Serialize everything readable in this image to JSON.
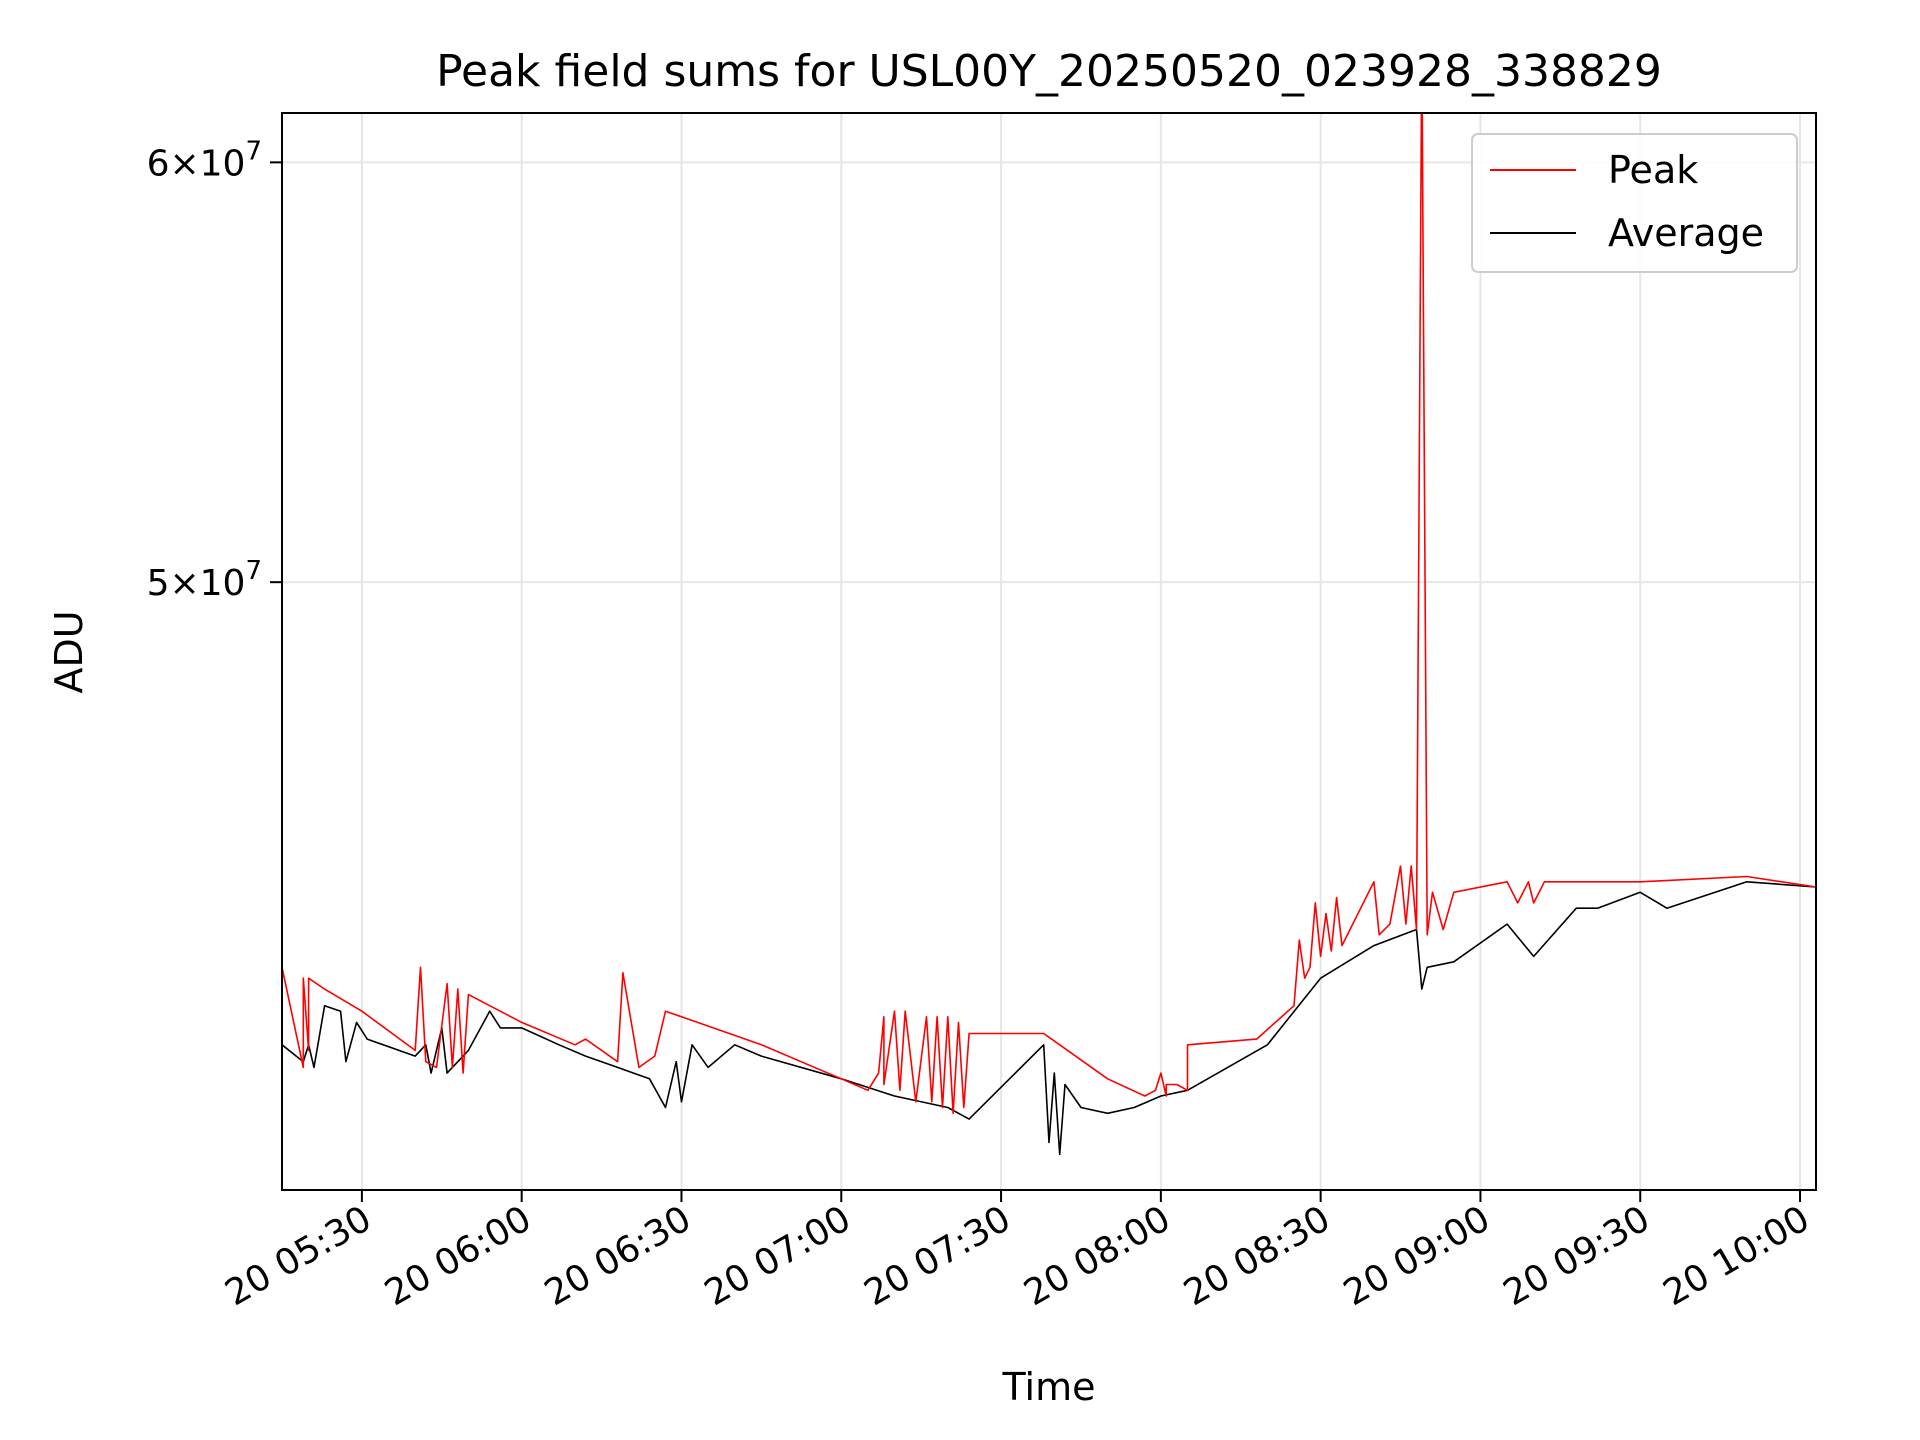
{
  "chart_data": {
    "type": "line",
    "title": "Peak field sums for USL00Y_20250520_023928_338829",
    "xlabel": "Time",
    "ylabel": "ADU",
    "xlim": [
      "2025-05-20 05:15",
      "2025-05-20 10:03"
    ],
    "ylim": [
      38400000,
      61300000
    ],
    "yscale": "log",
    "yticks": [
      {
        "value": 50000000,
        "mantissa": "5",
        "base": "10",
        "exp": "7"
      },
      {
        "value": 60000000,
        "mantissa": "6",
        "base": "10",
        "exp": "7"
      }
    ],
    "xtick_labels": [
      {
        "t": "2025-05-20 05:30",
        "label": "20 05:30"
      },
      {
        "t": "2025-05-20 06:00",
        "label": "20 06:00"
      },
      {
        "t": "2025-05-20 06:30",
        "label": "20 06:30"
      },
      {
        "t": "2025-05-20 07:00",
        "label": "20 07:00"
      },
      {
        "t": "2025-05-20 07:30",
        "label": "20 07:30"
      },
      {
        "t": "2025-05-20 08:00",
        "label": "20 08:00"
      },
      {
        "t": "2025-05-20 08:30",
        "label": "20 08:30"
      },
      {
        "t": "2025-05-20 09:00",
        "label": "20 09:00"
      },
      {
        "t": "2025-05-20 09:30",
        "label": "20 09:30"
      },
      {
        "t": "2025-05-20 10:00",
        "label": "20 10:00"
      }
    ],
    "grid": true,
    "legend_position": "top-right",
    "series": [
      {
        "name": "Peak",
        "color": "#ff0000",
        "points": [
          [
            "2025-05-20 05:15",
            42300000
          ],
          [
            "2025-05-20 05:19",
            40500000
          ],
          [
            "2025-05-20 05:19",
            42100000
          ],
          [
            "2025-05-20 05:20",
            40800000
          ],
          [
            "2025-05-20 05:20",
            42100000
          ],
          [
            "2025-05-20 05:23",
            41900000
          ],
          [
            "2025-05-20 05:30",
            41500000
          ],
          [
            "2025-05-20 05:40",
            40800000
          ],
          [
            "2025-05-20 05:41",
            42300000
          ],
          [
            "2025-05-20 05:42",
            40600000
          ],
          [
            "2025-05-20 05:44",
            40500000
          ],
          [
            "2025-05-20 05:46",
            42000000
          ],
          [
            "2025-05-20 05:47",
            40500000
          ],
          [
            "2025-05-20 05:48",
            41900000
          ],
          [
            "2025-05-20 05:49",
            40400000
          ],
          [
            "2025-05-20 05:50",
            41800000
          ],
          [
            "2025-05-20 06:00",
            41300000
          ],
          [
            "2025-05-20 06:10",
            40900000
          ],
          [
            "2025-05-20 06:12",
            41000000
          ],
          [
            "2025-05-20 06:18",
            40600000
          ],
          [
            "2025-05-20 06:19",
            42200000
          ],
          [
            "2025-05-20 06:22",
            40500000
          ],
          [
            "2025-05-20 06:25",
            40700000
          ],
          [
            "2025-05-20 06:27",
            41500000
          ],
          [
            "2025-05-20 06:30",
            41400000
          ],
          [
            "2025-05-20 06:45",
            40900000
          ],
          [
            "2025-05-20 07:00",
            40300000
          ],
          [
            "2025-05-20 07:05",
            40100000
          ],
          [
            "2025-05-20 07:07",
            40400000
          ],
          [
            "2025-05-20 07:08",
            41400000
          ],
          [
            "2025-05-20 07:08",
            40200000
          ],
          [
            "2025-05-20 07:10",
            41500000
          ],
          [
            "2025-05-20 07:11",
            40100000
          ],
          [
            "2025-05-20 07:12",
            41500000
          ],
          [
            "2025-05-20 07:14",
            39900000
          ],
          [
            "2025-05-20 07:16",
            41400000
          ],
          [
            "2025-05-20 07:17",
            39900000
          ],
          [
            "2025-05-20 07:18",
            41400000
          ],
          [
            "2025-05-20 07:19",
            39800000
          ],
          [
            "2025-05-20 07:19",
            39800000
          ],
          [
            "2025-05-20 07:20",
            41400000
          ],
          [
            "2025-05-20 07:21",
            39700000
          ],
          [
            "2025-05-20 07:22",
            41300000
          ],
          [
            "2025-05-20 07:23",
            39800000
          ],
          [
            "2025-05-20 07:24",
            41100000
          ],
          [
            "2025-05-20 07:38",
            41100000
          ],
          [
            "2025-05-20 07:41",
            40900000
          ],
          [
            "2025-05-20 07:50",
            40300000
          ],
          [
            "2025-05-20 07:57",
            40000000
          ],
          [
            "2025-05-20 07:59",
            40100000
          ],
          [
            "2025-05-20 08:00",
            40400000
          ],
          [
            "2025-05-20 08:01",
            40000000
          ],
          [
            "2025-05-20 08:01",
            40200000
          ],
          [
            "2025-05-20 08:03",
            40200000
          ],
          [
            "2025-05-20 08:05",
            40100000
          ],
          [
            "2025-05-20 08:05",
            40900000
          ],
          [
            "2025-05-20 08:18",
            41000000
          ],
          [
            "2025-05-20 08:25",
            41600000
          ],
          [
            "2025-05-20 08:26",
            42800000
          ],
          [
            "2025-05-20 08:27",
            42100000
          ],
          [
            "2025-05-20 08:28",
            42300000
          ],
          [
            "2025-05-20 08:29",
            43500000
          ],
          [
            "2025-05-20 08:30",
            42500000
          ],
          [
            "2025-05-20 08:31",
            43300000
          ],
          [
            "2025-05-20 08:32",
            42600000
          ],
          [
            "2025-05-20 08:33",
            43600000
          ],
          [
            "2025-05-20 08:34",
            42700000
          ],
          [
            "2025-05-20 08:40",
            43900000
          ],
          [
            "2025-05-20 08:41",
            42900000
          ],
          [
            "2025-05-20 08:43",
            43100000
          ],
          [
            "2025-05-20 08:45",
            44200000
          ],
          [
            "2025-05-20 08:46",
            43100000
          ],
          [
            "2025-05-20 08:47",
            44200000
          ],
          [
            "2025-05-20 08:48",
            43000000
          ],
          [
            "2025-05-20 08:49",
            63200000
          ],
          [
            "2025-05-20 08:50",
            42900000
          ],
          [
            "2025-05-20 08:51",
            43700000
          ],
          [
            "2025-05-20 08:53",
            43000000
          ],
          [
            "2025-05-20 08:55",
            43700000
          ],
          [
            "2025-05-20 09:05",
            43900000
          ],
          [
            "2025-05-20 09:07",
            43500000
          ],
          [
            "2025-05-20 09:09",
            43900000
          ],
          [
            "2025-05-20 09:10",
            43500000
          ],
          [
            "2025-05-20 09:12",
            43900000
          ],
          [
            "2025-05-20 09:30",
            43900000
          ],
          [
            "2025-05-20 09:50",
            44000000
          ],
          [
            "2025-05-20 10:03",
            43800000
          ]
        ]
      },
      {
        "name": "Average",
        "color": "#000000",
        "points": [
          [
            "2025-05-20 05:15",
            40900000
          ],
          [
            "2025-05-20 05:19",
            40600000
          ],
          [
            "2025-05-20 05:20",
            40900000
          ],
          [
            "2025-05-20 05:21",
            40500000
          ],
          [
            "2025-05-20 05:23",
            41600000
          ],
          [
            "2025-05-20 05:26",
            41500000
          ],
          [
            "2025-05-20 05:27",
            40600000
          ],
          [
            "2025-05-20 05:29",
            41300000
          ],
          [
            "2025-05-20 05:31",
            41000000
          ],
          [
            "2025-05-20 05:40",
            40700000
          ],
          [
            "2025-05-20 05:42",
            40900000
          ],
          [
            "2025-05-20 05:43",
            40400000
          ],
          [
            "2025-05-20 05:45",
            41200000
          ],
          [
            "2025-05-20 05:46",
            40400000
          ],
          [
            "2025-05-20 05:50",
            40800000
          ],
          [
            "2025-05-20 05:54",
            41500000
          ],
          [
            "2025-05-20 05:56",
            41200000
          ],
          [
            "2025-05-20 06:00",
            41200000
          ],
          [
            "2025-05-20 06:07",
            40900000
          ],
          [
            "2025-05-20 06:12",
            40700000
          ],
          [
            "2025-05-20 06:18",
            40500000
          ],
          [
            "2025-05-20 06:24",
            40300000
          ],
          [
            "2025-05-20 06:27",
            39800000
          ],
          [
            "2025-05-20 06:29",
            40600000
          ],
          [
            "2025-05-20 06:30",
            39900000
          ],
          [
            "2025-05-20 06:32",
            40900000
          ],
          [
            "2025-05-20 06:35",
            40500000
          ],
          [
            "2025-05-20 06:40",
            40900000
          ],
          [
            "2025-05-20 06:45",
            40700000
          ],
          [
            "2025-05-20 07:00",
            40300000
          ],
          [
            "2025-05-20 07:10",
            40000000
          ],
          [
            "2025-05-20 07:20",
            39800000
          ],
          [
            "2025-05-20 07:24",
            39600000
          ],
          [
            "2025-05-20 07:38",
            40900000
          ],
          [
            "2025-05-20 07:39",
            39200000
          ],
          [
            "2025-05-20 07:40",
            40400000
          ],
          [
            "2025-05-20 07:41",
            39000000
          ],
          [
            "2025-05-20 07:42",
            40200000
          ],
          [
            "2025-05-20 07:45",
            39800000
          ],
          [
            "2025-05-20 07:50",
            39700000
          ],
          [
            "2025-05-20 07:55",
            39800000
          ],
          [
            "2025-05-20 08:00",
            40000000
          ],
          [
            "2025-05-20 08:05",
            40100000
          ],
          [
            "2025-05-20 08:20",
            40900000
          ],
          [
            "2025-05-20 08:30",
            42100000
          ],
          [
            "2025-05-20 08:40",
            42700000
          ],
          [
            "2025-05-20 08:48",
            43000000
          ],
          [
            "2025-05-20 08:49",
            41900000
          ],
          [
            "2025-05-20 08:50",
            42300000
          ],
          [
            "2025-05-20 08:55",
            42400000
          ],
          [
            "2025-05-20 09:05",
            43100000
          ],
          [
            "2025-05-20 09:10",
            42500000
          ],
          [
            "2025-05-20 09:18",
            43400000
          ],
          [
            "2025-05-20 09:22",
            43400000
          ],
          [
            "2025-05-20 09:30",
            43700000
          ],
          [
            "2025-05-20 09:35",
            43400000
          ],
          [
            "2025-05-20 09:50",
            43900000
          ],
          [
            "2025-05-20 10:03",
            43800000
          ]
        ]
      }
    ]
  }
}
